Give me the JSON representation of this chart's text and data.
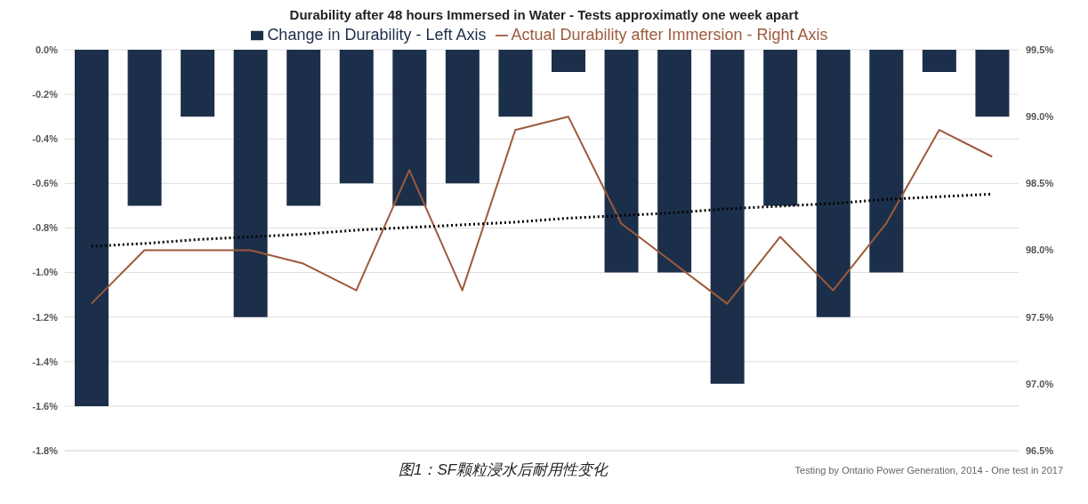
{
  "chart_data": {
    "type": "bar",
    "title": "Durability after 48 hours Immersed in Water - Tests approximatly one week apart",
    "categories": [
      null,
      null,
      null,
      null,
      null,
      null,
      null,
      null,
      null,
      null,
      null,
      null,
      null,
      null,
      null,
      null,
      null,
      null
    ],
    "series": [
      {
        "name": "Change in Durability - Left Axis",
        "color": "#1c2f4a",
        "values": [
          -1.6,
          -0.7,
          -0.3,
          -1.2,
          -0.7,
          -0.6,
          -0.7,
          -0.6,
          -0.3,
          -0.1,
          -1.0,
          -1.0,
          -1.5,
          -0.7,
          -1.2,
          -1.0,
          -0.1,
          -0.3
        ]
      },
      {
        "name": "Actual Durability after Immersion - Right Axis",
        "type": "line",
        "axis": "y2",
        "color": "#9c5a3c",
        "line_style": "solid",
        "values": [
          97.6,
          98.0,
          98.0,
          98.0,
          97.9,
          97.7,
          98.6,
          97.7,
          98.9,
          99.0,
          98.2,
          97.9,
          97.6,
          98.1,
          97.7,
          98.2,
          98.9,
          98.7
        ]
      },
      {
        "type": "line",
        "axis": "y2",
        "color": "#000000",
        "line_style": "dotted",
        "values": [
          98.03,
          98.05,
          98.08,
          98.1,
          98.12,
          98.15,
          98.17,
          98.19,
          98.21,
          98.24,
          98.26,
          98.28,
          98.31,
          98.33,
          98.35,
          98.38,
          98.4,
          98.42
        ]
      }
    ],
    "ylim": [
      -1.8,
      0
    ],
    "yticks": [
      {
        "value": -1.8,
        "label": "-1.8%"
      },
      {
        "value": -1.6,
        "label": "-1.6%"
      },
      {
        "value": -1.4,
        "label": "-1.4%"
      },
      {
        "value": -1.2,
        "label": "-1.2%"
      },
      {
        "value": -1.0,
        "label": "-1.0%"
      },
      {
        "value": -0.8,
        "label": "-0.8%"
      },
      {
        "value": -0.6,
        "label": "-0.6%"
      },
      {
        "value": -0.4,
        "label": "-0.4%"
      },
      {
        "value": -0.2,
        "label": "-0.2%"
      },
      {
        "value": 0,
        "label": "0.0%"
      }
    ],
    "y2lim": [
      96.5,
      99.5
    ],
    "y2ticks": [
      {
        "value": 96.5,
        "label": "96.5%"
      },
      {
        "value": 97.0,
        "label": "97.0%"
      },
      {
        "value": 97.5,
        "label": "97.5%"
      },
      {
        "value": 98.0,
        "label": "98.0%"
      },
      {
        "value": 98.5,
        "label": "98.5%"
      },
      {
        "value": 99.0,
        "label": "99.0%"
      },
      {
        "value": 99.5,
        "label": "99.5%"
      }
    ],
    "grid": "y",
    "legend": "top",
    "marker": "none",
    "annotations": [
      "图1：SF颗粒浸水后耐用性变化",
      "Testing by Ontario Power Generation, 2014 - One test in 2017"
    ]
  }
}
